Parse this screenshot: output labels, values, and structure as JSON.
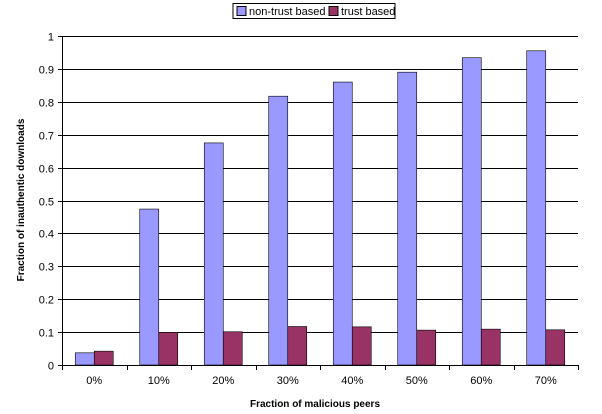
{
  "chart_data": {
    "type": "bar",
    "title": "",
    "xlabel": "Fraction of malicious peers",
    "ylabel": "Fraction of inauthentic downloads",
    "categories": [
      "0%",
      "10%",
      "20%",
      "30%",
      "40%",
      "50%",
      "60%",
      "70%"
    ],
    "series": [
      {
        "name": "non-trust based",
        "color": "#9999ff",
        "values": [
          0.037,
          0.474,
          0.675,
          0.817,
          0.86,
          0.89,
          0.934,
          0.955
        ]
      },
      {
        "name": "trust based",
        "color": "#993366",
        "values": [
          0.042,
          0.099,
          0.101,
          0.117,
          0.116,
          0.106,
          0.109,
          0.107
        ]
      }
    ],
    "ylim": [
      0,
      1
    ],
    "yticks": [
      "0",
      "0.1",
      "0.2",
      "0.3",
      "0.4",
      "0.5",
      "0.6",
      "0.7",
      "0.8",
      "0.9",
      "1"
    ],
    "grid": true,
    "legend": "top-center"
  }
}
